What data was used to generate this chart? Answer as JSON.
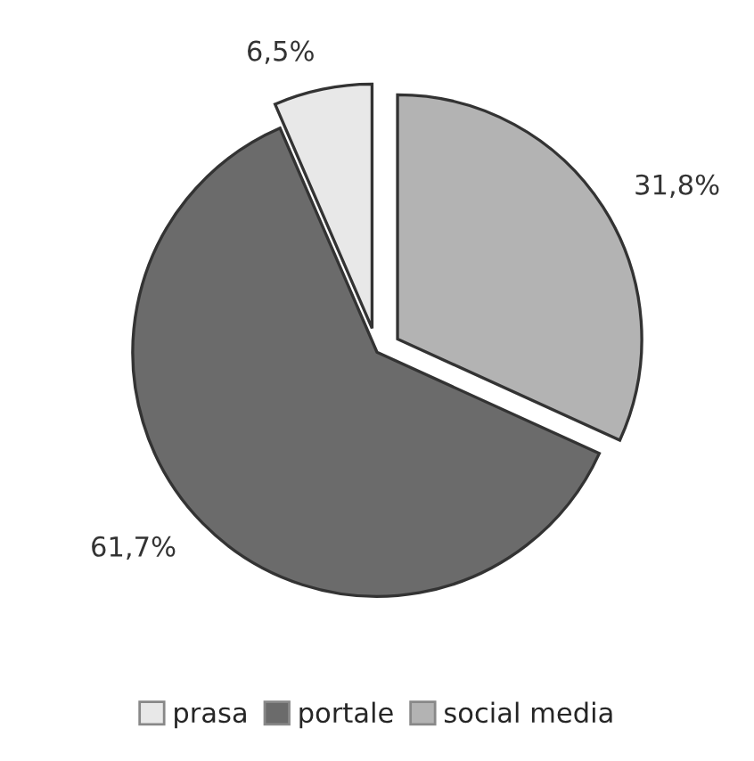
{
  "chart_data": {
    "type": "pie",
    "categories": [
      "prasa",
      "portale",
      "social media"
    ],
    "values": [
      6.5,
      61.7,
      31.8
    ],
    "value_labels": [
      "6,5%",
      "61,7%",
      "31,8%"
    ],
    "colors": [
      "#e8e8e8",
      "#6b6b6b",
      "#b3b3b3"
    ],
    "legend": "bottom"
  }
}
